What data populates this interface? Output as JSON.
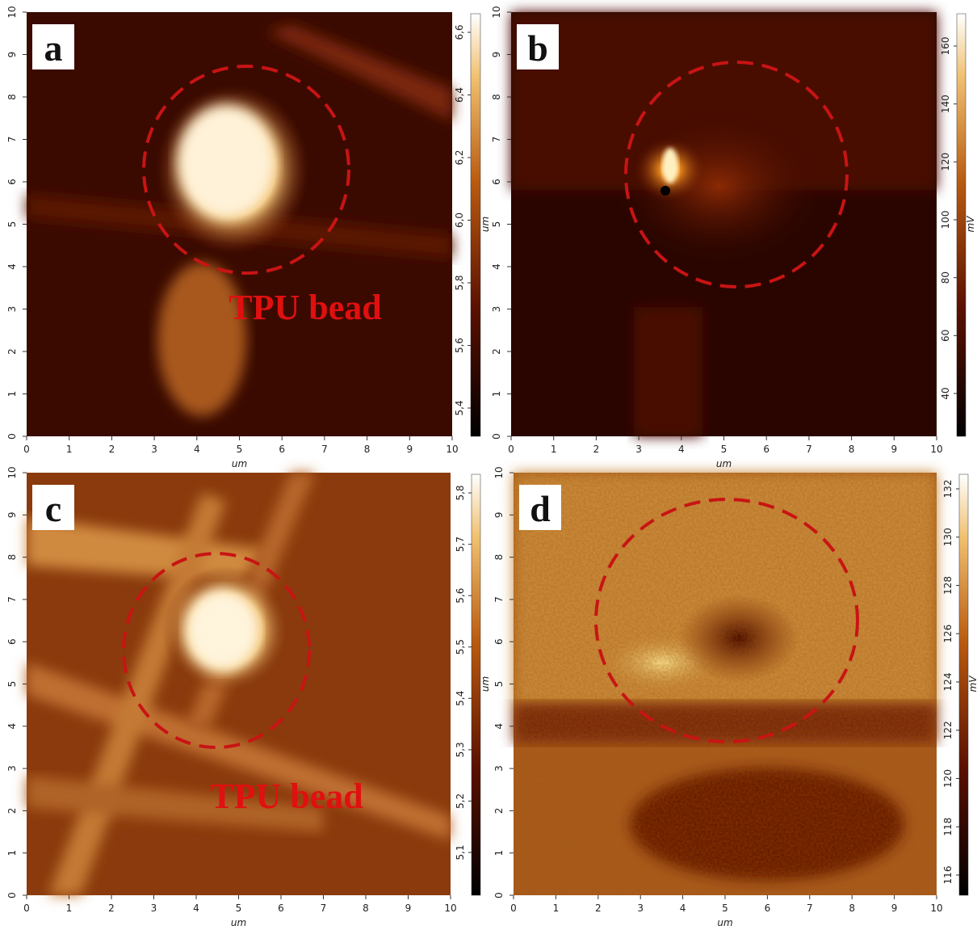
{
  "panels": [
    {
      "label": "a",
      "annotation": "TPU bead",
      "xticks": [
        0,
        1,
        2,
        3,
        4,
        5,
        6,
        7,
        8,
        9,
        10
      ],
      "xlabel": "um",
      "yticks": [
        0,
        1,
        2,
        3,
        4,
        5,
        6,
        7,
        8,
        9,
        10
      ],
      "colorbar_ticks": [
        "5,4",
        "5,6",
        "5,8",
        "6,0",
        "6,2",
        "6,4",
        "6,6"
      ],
      "colorbar_unit": "um"
    },
    {
      "label": "b",
      "xticks": [
        0,
        1,
        2,
        3,
        4,
        5,
        6,
        7,
        8,
        9,
        10
      ],
      "xlabel": "um",
      "yticks": [
        0,
        1,
        2,
        3,
        4,
        5,
        6,
        7,
        8,
        9,
        10
      ],
      "colorbar_ticks": [
        40,
        60,
        80,
        100,
        120,
        140,
        160
      ],
      "colorbar_unit": "mV"
    },
    {
      "label": "c",
      "annotation": "TPU bead",
      "xticks": [
        0,
        1,
        2,
        3,
        4,
        5,
        6,
        7,
        8,
        9,
        10
      ],
      "xlabel": "um",
      "yticks": [
        0,
        1,
        2,
        3,
        4,
        5,
        6,
        7,
        8,
        9,
        10
      ],
      "colorbar_ticks": [
        "5,1",
        "5,2",
        "5,3",
        "5,4",
        "5,5",
        "5,6",
        "5,7",
        "5,8"
      ],
      "colorbar_unit": "um"
    },
    {
      "label": "d",
      "xticks": [
        0,
        1,
        2,
        3,
        4,
        5,
        6,
        7,
        8,
        9,
        10
      ],
      "xlabel": "um",
      "yticks": [
        0,
        1,
        2,
        3,
        4,
        5,
        6,
        7,
        8,
        9,
        10
      ],
      "colorbar_ticks": [
        116,
        118,
        120,
        122,
        124,
        126,
        128,
        130,
        132
      ],
      "colorbar_unit": "mV"
    }
  ]
}
